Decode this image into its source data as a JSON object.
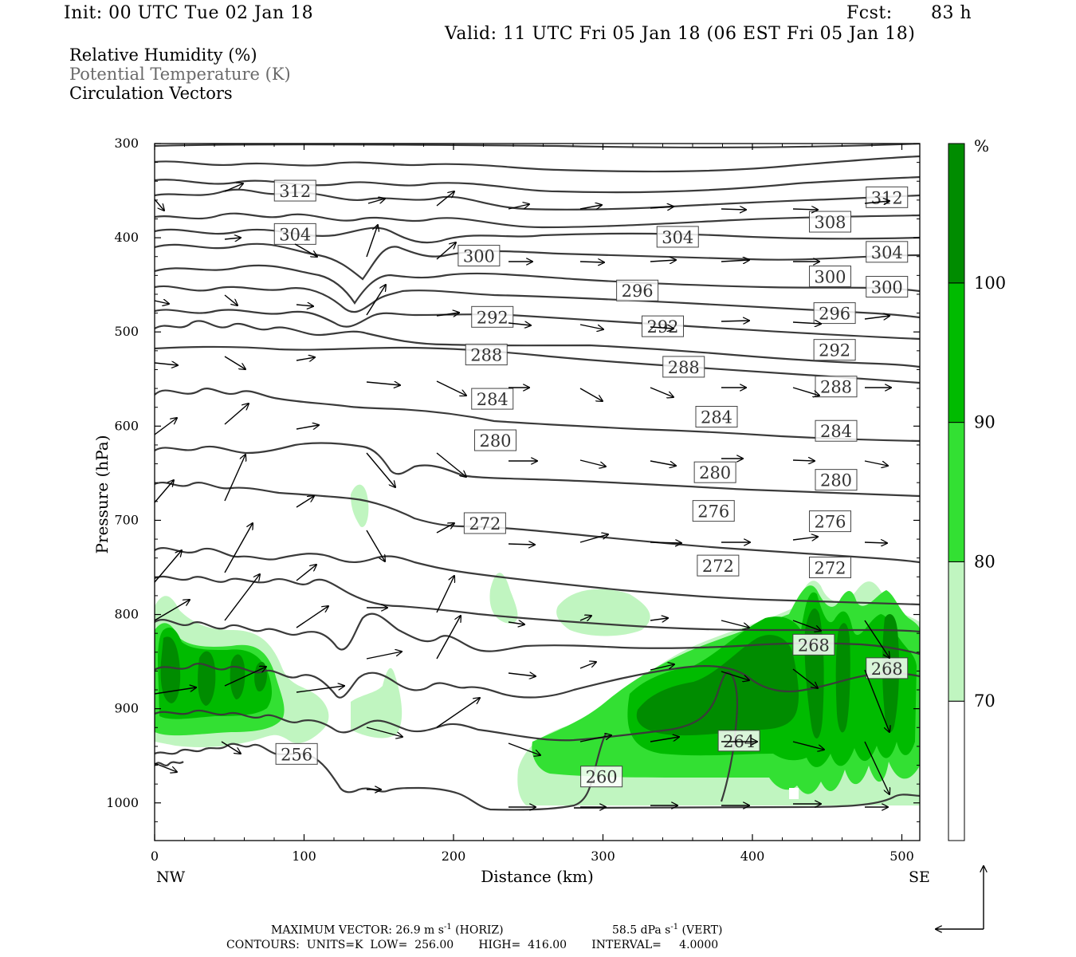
{
  "header": {
    "init": "Init: 00 UTC Tue 02 Jan 18",
    "fcst_label": "Fcst:",
    "fcst_value": "83 h",
    "valid": "Valid: 11 UTC Fri 05 Jan 18 (06 EST Fri 05 Jan 18)"
  },
  "legend": {
    "rh": "Relative Humidity (%)",
    "theta": "Potential Temperature (K)",
    "vectors": "Circulation Vectors"
  },
  "axes": {
    "ylabel": "Pressure (hPa)",
    "xlabel": "Distance (km)",
    "x_left_end": "NW",
    "x_right_end": "SE"
  },
  "colorbar": {
    "unit": "%",
    "levels": [
      "70",
      "80",
      "90",
      "100"
    ],
    "colors": [
      "#ffffff",
      "#c0f5c0",
      "#33e033",
      "#00bb00",
      "#008c00"
    ]
  },
  "footer": {
    "line1_a": "MAXIMUM VECTOR:  26.9 m s",
    "line1_a_sup": "-1",
    "line1_b": " (HORIZ)",
    "line1_c": "58.5 dPa s",
    "line1_c_sup": "-1",
    "line1_d": " (VERT)",
    "line2": "CONTOURS:  UNITS=K  LOW=  256.00       HIGH=  416.00       INTERVAL=     4.0000"
  },
  "chart_data": {
    "type": "cross-section",
    "x_label": "Distance (km)",
    "y_label": "Pressure (hPa)",
    "xlim": [
      0,
      512
    ],
    "ylim": [
      1040,
      300
    ],
    "x_ticks": [
      0,
      100,
      200,
      300,
      400,
      500
    ],
    "y_ticks": [
      300,
      400,
      500,
      600,
      700,
      800,
      900,
      1000
    ],
    "theta_contour_labels": [
      {
        "value": "312",
        "x": 94,
        "p": 350
      },
      {
        "value": "312",
        "x": 490,
        "p": 357
      },
      {
        "value": "308",
        "x": 452,
        "p": 383
      },
      {
        "value": "304",
        "x": 94,
        "p": 396
      },
      {
        "value": "304",
        "x": 350,
        "p": 399
      },
      {
        "value": "304",
        "x": 490,
        "p": 415
      },
      {
        "value": "300",
        "x": 217,
        "p": 419
      },
      {
        "value": "300",
        "x": 452,
        "p": 441
      },
      {
        "value": "300",
        "x": 490,
        "p": 452
      },
      {
        "value": "296",
        "x": 323,
        "p": 456
      },
      {
        "value": "296",
        "x": 455,
        "p": 480
      },
      {
        "value": "292",
        "x": 226,
        "p": 484
      },
      {
        "value": "292",
        "x": 340,
        "p": 494
      },
      {
        "value": "292",
        "x": 455,
        "p": 519
      },
      {
        "value": "288",
        "x": 222,
        "p": 524
      },
      {
        "value": "288",
        "x": 354,
        "p": 537
      },
      {
        "value": "288",
        "x": 456,
        "p": 558
      },
      {
        "value": "284",
        "x": 226,
        "p": 571
      },
      {
        "value": "284",
        "x": 376,
        "p": 590
      },
      {
        "value": "284",
        "x": 456,
        "p": 605
      },
      {
        "value": "280",
        "x": 228,
        "p": 615
      },
      {
        "value": "280",
        "x": 375,
        "p": 649
      },
      {
        "value": "280",
        "x": 456,
        "p": 657
      },
      {
        "value": "276",
        "x": 374,
        "p": 690
      },
      {
        "value": "276",
        "x": 452,
        "p": 701
      },
      {
        "value": "272",
        "x": 221,
        "p": 703
      },
      {
        "value": "272",
        "x": 377,
        "p": 748
      },
      {
        "value": "272",
        "x": 452,
        "p": 750
      },
      {
        "value": "268",
        "x": 441,
        "p": 832
      },
      {
        "value": "268",
        "x": 490,
        "p": 857
      },
      {
        "value": "264",
        "x": 391,
        "p": 934
      },
      {
        "value": "260",
        "x": 299,
        "p": 972
      },
      {
        "value": "256",
        "x": 95,
        "p": 948
      }
    ],
    "rh_levels": [
      70,
      80,
      90,
      100
    ],
    "max_vector_horiz": "26.9 m s-1",
    "max_vector_vert": "58.5 dPa s-1",
    "contour_low": 256.0,
    "contour_high": 416.0,
    "contour_interval": 4.0
  }
}
